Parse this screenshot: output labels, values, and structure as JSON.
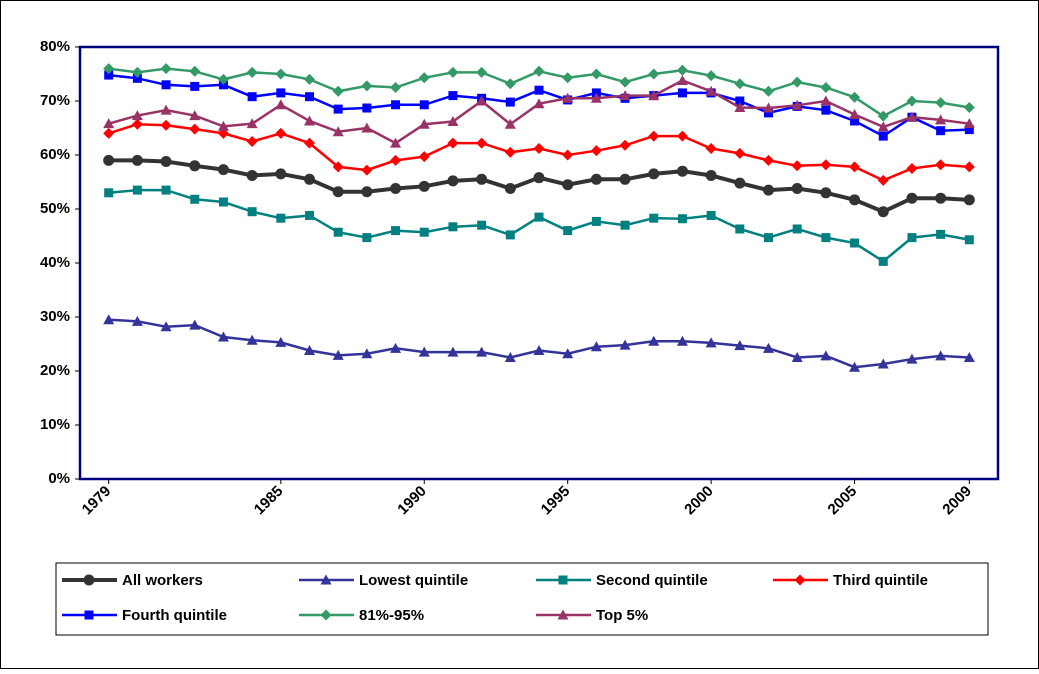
{
  "chart_data": {
    "type": "line",
    "x": [
      1979,
      1980,
      1981,
      1982,
      1983,
      1984,
      1985,
      1986,
      1987,
      1988,
      1989,
      1990,
      1991,
      1992,
      1993,
      1994,
      1995,
      1996,
      1997,
      1998,
      1999,
      2000,
      2001,
      2002,
      2003,
      2004,
      2005,
      2006,
      2007,
      2008,
      2009
    ],
    "xlim": [
      1978,
      2010
    ],
    "xticks": [
      1979,
      1985,
      1990,
      1995,
      2000,
      2005,
      2009
    ],
    "ylim": [
      0,
      80
    ],
    "yticks": [
      {
        "value": 0,
        "label": "0%"
      },
      {
        "value": 10,
        "label": "10%"
      },
      {
        "value": 20,
        "label": "20%"
      },
      {
        "value": 30,
        "label": "30%"
      },
      {
        "value": 40,
        "label": "40%"
      },
      {
        "value": 50,
        "label": "50%"
      },
      {
        "value": 60,
        "label": "60%"
      },
      {
        "value": 70,
        "label": "70%"
      },
      {
        "value": 80,
        "label": "80%"
      }
    ],
    "series": [
      {
        "name": "All workers",
        "color": "#333333",
        "marker": "circle",
        "values": [
          59,
          59,
          58.8,
          58,
          57.3,
          56.2,
          56.5,
          55.5,
          53.2,
          53.2,
          53.8,
          54.2,
          55.2,
          55.5,
          53.8,
          55.8,
          54.5,
          55.5,
          55.5,
          56.5,
          57,
          56.2,
          54.8,
          53.5,
          53.8,
          53,
          51.7,
          49.5,
          52,
          52,
          51.7
        ]
      },
      {
        "name": "Lowest quintile",
        "color": "#333399",
        "marker": "triangle",
        "values": [
          29.5,
          29.2,
          28.2,
          28.5,
          26.3,
          25.7,
          25.3,
          23.8,
          22.9,
          23.2,
          24.2,
          23.5,
          23.5,
          23.5,
          22.5,
          23.8,
          23.2,
          24.5,
          24.8,
          25.5,
          25.5,
          25.2,
          24.7,
          24.2,
          22.5,
          22.8,
          20.7,
          21.3,
          22.2,
          22.8,
          22.5
        ]
      },
      {
        "name": "Second quintile",
        "color": "#008080",
        "marker": "square",
        "values": [
          53,
          53.5,
          53.5,
          51.8,
          51.3,
          49.5,
          48.3,
          48.8,
          45.7,
          44.7,
          46,
          45.7,
          46.7,
          47,
          45.2,
          48.5,
          46,
          47.7,
          47,
          48.3,
          48.2,
          48.8,
          46.3,
          44.7,
          46.3,
          44.7,
          43.7,
          40.3,
          44.7,
          45.3,
          44.3
        ]
      },
      {
        "name": "Third quintile",
        "color": "#ff0000",
        "marker": "diamond",
        "values": [
          64,
          65.7,
          65.5,
          64.8,
          64,
          62.5,
          64,
          62.2,
          57.8,
          57.2,
          59,
          59.7,
          62.2,
          62.2,
          60.5,
          61.2,
          60,
          60.8,
          61.8,
          63.5,
          63.5,
          61.2,
          60.3,
          59,
          58,
          58.2,
          57.8,
          55.3,
          57.5,
          58.2,
          57.8
        ]
      },
      {
        "name": "Fourth quintile",
        "color": "#0000ff",
        "marker": "square",
        "values": [
          74.8,
          74.2,
          73,
          72.7,
          73,
          70.8,
          71.5,
          70.8,
          68.5,
          68.7,
          69.3,
          69.3,
          71,
          70.5,
          69.8,
          72,
          70.2,
          71.5,
          70.5,
          71,
          71.5,
          71.5,
          70,
          67.8,
          69,
          68.3,
          66.3,
          63.5,
          67,
          64.5,
          64.7
        ]
      },
      {
        "name": "81%-95%",
        "color": "#339966",
        "marker": "diamond",
        "values": [
          76,
          75.3,
          76,
          75.5,
          74,
          75.3,
          75,
          74,
          71.8,
          72.8,
          72.5,
          74.3,
          75.3,
          75.3,
          73.2,
          75.5,
          74.3,
          75,
          73.5,
          75,
          75.7,
          74.7,
          73.2,
          71.8,
          73.5,
          72.5,
          70.7,
          67.2,
          70,
          69.7,
          68.8
        ]
      },
      {
        "name": "Top 5%",
        "color": "#993366",
        "marker": "triangle",
        "values": [
          65.8,
          67.3,
          68.3,
          67.3,
          65.3,
          65.8,
          69.3,
          66.3,
          64.3,
          65,
          62.2,
          65.7,
          66.2,
          70,
          65.7,
          69.5,
          70.5,
          70.5,
          71,
          71,
          73.8,
          71.8,
          68.8,
          68.7,
          69.2,
          70,
          67.5,
          65.2,
          67,
          66.5,
          65.8
        ]
      }
    ]
  }
}
